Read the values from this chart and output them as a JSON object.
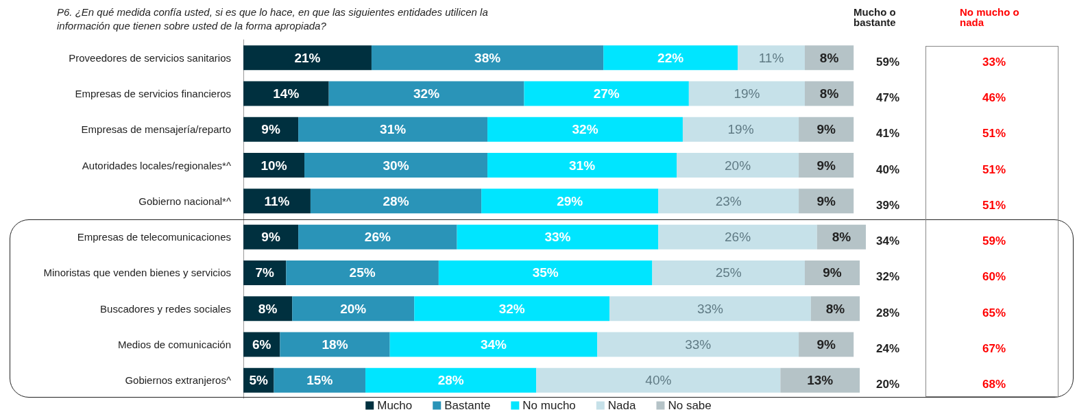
{
  "chart_data": {
    "type": "bar",
    "orientation": "horizontal",
    "stacked": true,
    "legend": "bottom",
    "grid": false,
    "tick_labels": "y",
    "title": "P6. ¿En qué medida confía usted, si es que lo hace, en que las siguientes entidades utilicen la información que tienen sobre usted de la forma apropiada?",
    "categories": [
      "Proveedores de servicios sanitarios",
      "Empresas de servicios financieros",
      "Empresas de mensajería/reparto",
      "Autoridades locales/regionales*^",
      "Gobierno nacional*^",
      "Empresas de telecomunicaciones",
      "Minoristas que venden bienes y servicios",
      "Buscadores y redes sociales",
      "Medios de comunicación",
      "Gobiernos extranjeros^"
    ],
    "series": [
      {
        "name": "Mucho",
        "color": "#00303f",
        "values": [
          21,
          14,
          9,
          10,
          11,
          9,
          7,
          8,
          6,
          5
        ],
        "value_labels": [
          "21%",
          "14%",
          "9%",
          "10%",
          "11%",
          "9%",
          "7%",
          "8%",
          "6%",
          "5%"
        ]
      },
      {
        "name": "Bastante",
        "color": "#2a94b8",
        "values": [
          38,
          32,
          31,
          30,
          28,
          26,
          25,
          20,
          18,
          15
        ],
        "value_labels": [
          "38%",
          "32%",
          "31%",
          "30%",
          "28%",
          "26%",
          "25%",
          "20%",
          "18%",
          "15%"
        ]
      },
      {
        "name": "No mucho",
        "color": "#00e5ff",
        "values": [
          22,
          27,
          32,
          31,
          29,
          33,
          35,
          32,
          34,
          28
        ],
        "value_labels": [
          "22%",
          "27%",
          "32%",
          "31%",
          "29%",
          "33%",
          "35%",
          "32%",
          "34%",
          "28%"
        ]
      },
      {
        "name": "Nada",
        "color": "#c6e1e9",
        "values": [
          11,
          19,
          19,
          20,
          23,
          26,
          25,
          33,
          33,
          40
        ],
        "value_labels": [
          "11%",
          "19%",
          "19%",
          "20%",
          "23%",
          "26%",
          "25%",
          "33%",
          "33%",
          "40%"
        ]
      },
      {
        "name": "No sabe",
        "color": "#b5c3c7",
        "values": [
          8,
          8,
          9,
          9,
          9,
          8,
          9,
          8,
          9,
          13
        ],
        "value_labels": [
          "8%",
          "8%",
          "9%",
          "9%",
          "9%",
          "8%",
          "9%",
          "8%",
          "9%",
          "13%"
        ]
      }
    ],
    "annotations": [
      "Mucho o bastante",
      "No mucho o nada",
      "59%",
      "33%",
      "47%",
      "46%",
      "41%",
      "51%",
      "40%",
      "51%",
      "39%",
      "51%",
      "34%",
      "59%",
      "32%",
      "60%",
      "28%",
      "65%",
      "24%",
      "67%",
      "20%",
      "68%"
    ]
  }
}
